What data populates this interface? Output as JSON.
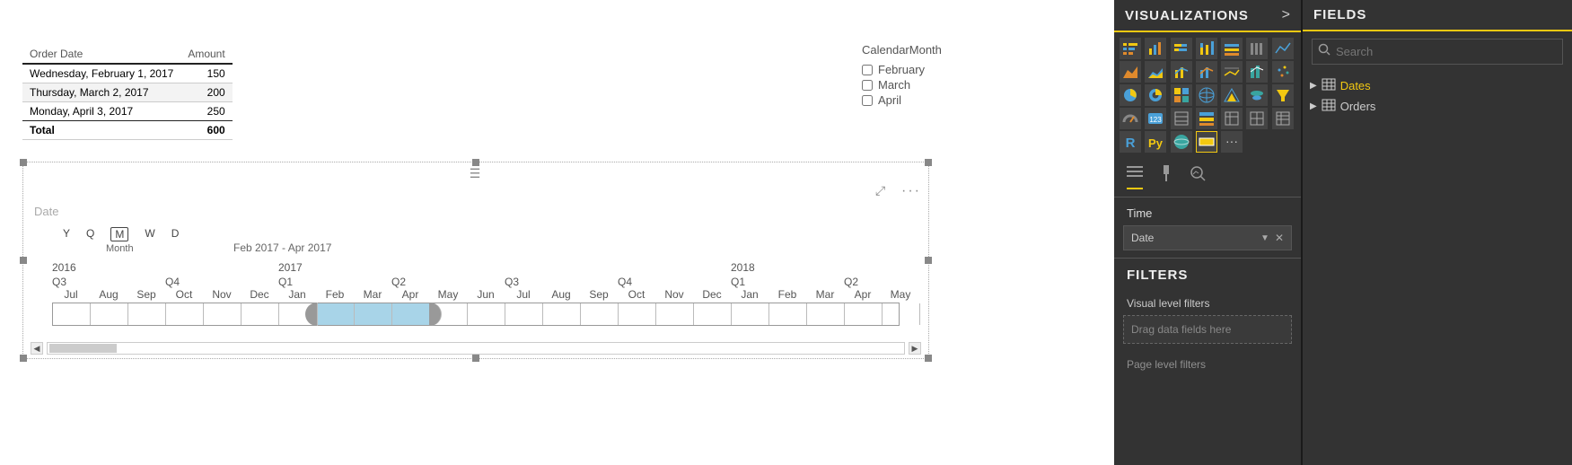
{
  "table": {
    "columns": [
      "Order Date",
      "Amount"
    ],
    "rows": [
      {
        "date": "Wednesday, February 1, 2017",
        "amount": "150"
      },
      {
        "date": "Thursday, March 2, 2017",
        "amount": "200"
      },
      {
        "date": "Monday, April 3, 2017",
        "amount": "250"
      }
    ],
    "total_label": "Total",
    "total_value": "600"
  },
  "slicer": {
    "title": "CalendarMonth",
    "items": [
      "February",
      "March",
      "April"
    ]
  },
  "timeline": {
    "title": "Date",
    "granularities": [
      "Y",
      "Q",
      "M",
      "W",
      "D"
    ],
    "granularity_selected": "M",
    "granularity_label": "Month",
    "range_label": "Feb 2017 - Apr 2017",
    "years": {
      "2016": 0,
      "2017": 6,
      "2018": 18
    },
    "quarters": [
      "Q3",
      "Q4",
      "Q1",
      "Q2",
      "Q3",
      "Q4",
      "Q1",
      "Q2"
    ],
    "quarter_spans": [
      3,
      3,
      3,
      3,
      3,
      3,
      3,
      2
    ],
    "months": [
      "Jul",
      "Aug",
      "Sep",
      "Oct",
      "Nov",
      "Dec",
      "Jan",
      "Feb",
      "Mar",
      "Apr",
      "May",
      "Jun",
      "Jul",
      "Aug",
      "Sep",
      "Oct",
      "Nov",
      "Dec",
      "Jan",
      "Feb",
      "Mar",
      "Apr",
      "May"
    ],
    "selected_start": 7,
    "selected_end": 9,
    "focus_icon": "⤢",
    "more_icon": "···"
  },
  "viz_panel": {
    "title": "VISUALIZATIONS",
    "chevron": ">",
    "section_time": "Time",
    "field_in_well": "Date",
    "filters_title": "FILTERS",
    "filters_sub": "Visual level filters",
    "drop_hint": "Drag data fields here",
    "page_filters": "Page level filters",
    "icon_colors": {
      "accent": "#f2c811",
      "blue": "#4aa0d8",
      "orange": "#e08a2c",
      "teal": "#39a5a0"
    }
  },
  "fields_panel": {
    "title": "FIELDS",
    "search_placeholder": "Search",
    "tables": [
      {
        "name": "Dates",
        "selected": true
      },
      {
        "name": "Orders",
        "selected": false
      }
    ]
  }
}
